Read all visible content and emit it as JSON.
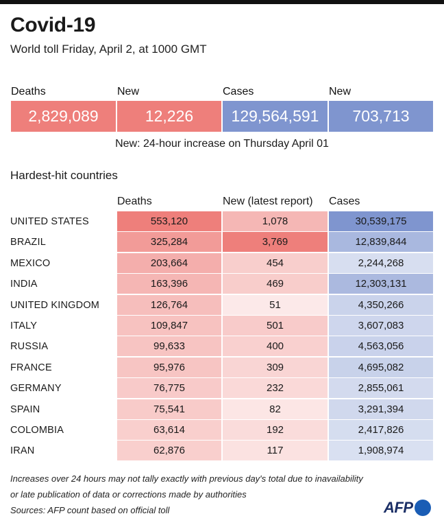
{
  "header": {
    "title": "Covid-19",
    "subtitle": "World toll Friday, April 2, at 1000 GMT"
  },
  "summary": {
    "items": [
      {
        "label": "Deaths",
        "value": "2,829,089",
        "color": "#ee7f7b"
      },
      {
        "label": "New",
        "value": "12,226",
        "color": "#ee7f7b"
      },
      {
        "label": "Cases",
        "value": "129,564,591",
        "color": "#7f95cf"
      },
      {
        "label": "New",
        "value": "703,713",
        "color": "#7f95cf"
      }
    ],
    "note": "New: 24-hour increase on Thursday April 01"
  },
  "section_title": "Hardest-hit countries",
  "columns": [
    "Deaths",
    "New (latest report)",
    "Cases"
  ],
  "colors": {
    "deaths_accent": "#ee7f7b",
    "cases_accent": "#7f95cf",
    "background_white": "#ffffff"
  },
  "chart_data": {
    "type": "table",
    "title": "Hardest-hit countries",
    "columns": [
      "Deaths",
      "New (latest report)",
      "Cases"
    ],
    "rows": [
      {
        "country": "UNITED STATES",
        "deaths": "553,120",
        "new": "1,078",
        "cases": "30,539,175",
        "deaths_n": 553120,
        "new_n": 1078,
        "cases_n": 30539175
      },
      {
        "country": "BRAZIL",
        "deaths": "325,284",
        "new": "3,769",
        "cases": "12,839,844",
        "deaths_n": 325284,
        "new_n": 3769,
        "cases_n": 12839844
      },
      {
        "country": "MEXICO",
        "deaths": "203,664",
        "new": "454",
        "cases": "2,244,268",
        "deaths_n": 203664,
        "new_n": 454,
        "cases_n": 2244268
      },
      {
        "country": "INDIA",
        "deaths": "163,396",
        "new": "469",
        "cases": "12,303,131",
        "deaths_n": 163396,
        "new_n": 469,
        "cases_n": 12303131
      },
      {
        "country": "UNITED KINGDOM",
        "deaths": "126,764",
        "new": "51",
        "cases": "4,350,266",
        "deaths_n": 126764,
        "new_n": 51,
        "cases_n": 4350266
      },
      {
        "country": "ITALY",
        "deaths": "109,847",
        "new": "501",
        "cases": "3,607,083",
        "deaths_n": 109847,
        "new_n": 501,
        "cases_n": 3607083
      },
      {
        "country": "RUSSIA",
        "deaths": "99,633",
        "new": "400",
        "cases": "4,563,056",
        "deaths_n": 99633,
        "new_n": 400,
        "cases_n": 4563056
      },
      {
        "country": "FRANCE",
        "deaths": "95,976",
        "new": "309",
        "cases": "4,695,082",
        "deaths_n": 95976,
        "new_n": 309,
        "cases_n": 4695082
      },
      {
        "country": "GERMANY",
        "deaths": "76,775",
        "new": "232",
        "cases": "2,855,061",
        "deaths_n": 76775,
        "new_n": 232,
        "cases_n": 2855061
      },
      {
        "country": "SPAIN",
        "deaths": "75,541",
        "new": "82",
        "cases": "3,291,394",
        "deaths_n": 75541,
        "new_n": 82,
        "cases_n": 3291394
      },
      {
        "country": "COLOMBIA",
        "deaths": "63,614",
        "new": "192",
        "cases": "2,417,826",
        "deaths_n": 63614,
        "new_n": 192,
        "cases_n": 2417826
      },
      {
        "country": "IRAN",
        "deaths": "62,876",
        "new": "117",
        "cases": "1,908,974",
        "deaths_n": 62876,
        "new_n": 117,
        "cases_n": 1908974
      }
    ]
  },
  "footnotes": [
    "Increases over 24 hours may not tally exactly with previous day's total due to inavailability",
    "or late publication of data or corrections made by authorities",
    "Sources: AFP count based on official toll"
  ],
  "logo": {
    "text": "AFP"
  }
}
